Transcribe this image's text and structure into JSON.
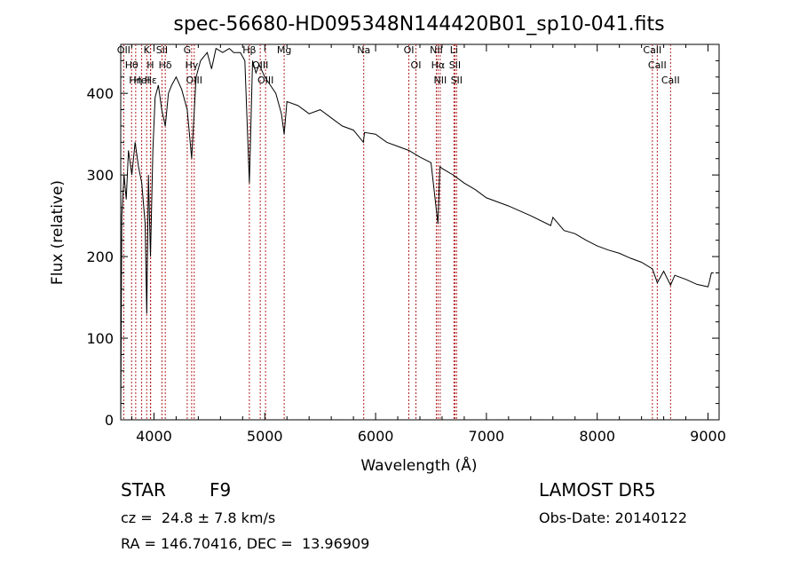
{
  "chart_data": {
    "type": "line",
    "title": "spec-56680-HD095348N144420B01_sp10-041.fits",
    "xlabel": "Wavelength (Å)",
    "ylabel": "Flux (relative)",
    "xlim": [
      3700,
      9100
    ],
    "ylim": [
      0,
      460
    ],
    "x_ticks": [
      4000,
      5000,
      6000,
      7000,
      8000,
      9000
    ],
    "y_ticks": [
      0,
      100,
      200,
      300,
      400
    ],
    "grid": false,
    "colors": {
      "line": "#000000",
      "markers": "#b22222"
    },
    "series": [
      {
        "x": [
          3700,
          3710,
          3730,
          3750,
          3770,
          3800,
          3830,
          3860,
          3890,
          3920,
          3935,
          3950,
          3968,
          3990,
          4010,
          4040,
          4070,
          4102,
          4130,
          4160,
          4200,
          4250,
          4300,
          4340,
          4380,
          4420,
          4480,
          4520,
          4560,
          4620,
          4680,
          4720,
          4780,
          4820,
          4861,
          4890,
          4920,
          4950,
          5000,
          5050,
          5100,
          5150,
          5175,
          5200,
          5300,
          5400,
          5500,
          5600,
          5700,
          5800,
          5890,
          5900,
          6000,
          6100,
          6200,
          6300,
          6400,
          6500,
          6563,
          6580,
          6600,
          6700,
          6800,
          6900,
          7000,
          7200,
          7400,
          7580,
          7600,
          7700,
          7800,
          7900,
          8000,
          8100,
          8200,
          8300,
          8400,
          8498,
          8542,
          8600,
          8662,
          8700,
          8800,
          8900,
          9000,
          9010,
          9030,
          9050
        ],
        "values": [
          0,
          250,
          300,
          270,
          330,
          300,
          340,
          310,
          290,
          240,
          130,
          300,
          200,
          330,
          395,
          410,
          380,
          360,
          400,
          410,
          420,
          405,
          380,
          320,
          420,
          440,
          450,
          430,
          455,
          450,
          455,
          450,
          450,
          440,
          290,
          440,
          425,
          435,
          420,
          410,
          400,
          375,
          350,
          390,
          385,
          375,
          380,
          370,
          360,
          355,
          340,
          352,
          350,
          340,
          335,
          330,
          322,
          315,
          240,
          310,
          308,
          300,
          290,
          282,
          272,
          262,
          250,
          238,
          248,
          232,
          228,
          220,
          213,
          208,
          204,
          198,
          193,
          185,
          168,
          182,
          165,
          177,
          172,
          166,
          163,
          168,
          180,
          180
        ]
      }
    ],
    "line_markers": [
      {
        "wavelength": 3727,
        "label": "OII"
      },
      {
        "wavelength": 3798,
        "label": "Hθ"
      },
      {
        "wavelength": 3835,
        "label": "Hη"
      },
      {
        "wavelength": 3889,
        "label": "HeI"
      },
      {
        "wavelength": 3934,
        "label": "K"
      },
      {
        "wavelength": 3968,
        "label": "H"
      },
      {
        "wavelength": 3970,
        "label": "Hε"
      },
      {
        "wavelength": 4072,
        "label": "SII"
      },
      {
        "wavelength": 4102,
        "label": "Hδ"
      },
      {
        "wavelength": 4300,
        "label": "G"
      },
      {
        "wavelength": 4340,
        "label": "Hγ"
      },
      {
        "wavelength": 4363,
        "label": "OIII"
      },
      {
        "wavelength": 4861,
        "label": "Hβ"
      },
      {
        "wavelength": 4959,
        "label": "OIII"
      },
      {
        "wavelength": 5007,
        "label": "OIII"
      },
      {
        "wavelength": 5175,
        "label": "Mg"
      },
      {
        "wavelength": 5893,
        "label": "Na"
      },
      {
        "wavelength": 6300,
        "label": "OI"
      },
      {
        "wavelength": 6364,
        "label": "OI"
      },
      {
        "wavelength": 6548,
        "label": "NII"
      },
      {
        "wavelength": 6563,
        "label": "Hα"
      },
      {
        "wavelength": 6583,
        "label": "NII"
      },
      {
        "wavelength": 6707,
        "label": "Li"
      },
      {
        "wavelength": 6716,
        "label": "SII"
      },
      {
        "wavelength": 6731,
        "label": "SII"
      },
      {
        "wavelength": 8498,
        "label": "CaII"
      },
      {
        "wavelength": 8542,
        "label": "CaII"
      },
      {
        "wavelength": 8662,
        "label": "CaII"
      }
    ]
  },
  "info": {
    "object_type": "STAR",
    "subclass": "F9",
    "velocity": "cz =  24.8 ± 7.8 km/s",
    "coords": "RA = 146.70416, DEC =  13.96909",
    "survey": "LAMOST DR5",
    "obs_date": "Obs-Date: 20140122"
  }
}
